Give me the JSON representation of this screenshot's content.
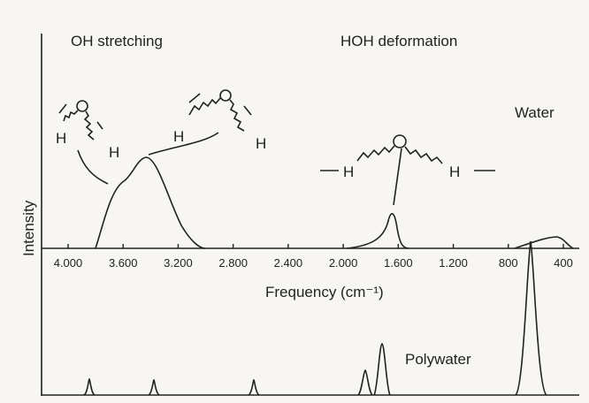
{
  "labels": {
    "oh": "OH stretching",
    "hoh": "HOH deformation",
    "water": "Water",
    "polywater": "Polywater",
    "y_axis": "Intensity",
    "x_axis": "Frequency (cm⁻¹)"
  },
  "atoms": [
    "H",
    "H",
    "H",
    "H",
    "H",
    "H"
  ],
  "ticks": [
    "4.000",
    "3.600",
    "3.200",
    "2.800",
    "2.400",
    "2.000",
    "1.600",
    "1.200",
    "800",
    "400"
  ]
}
